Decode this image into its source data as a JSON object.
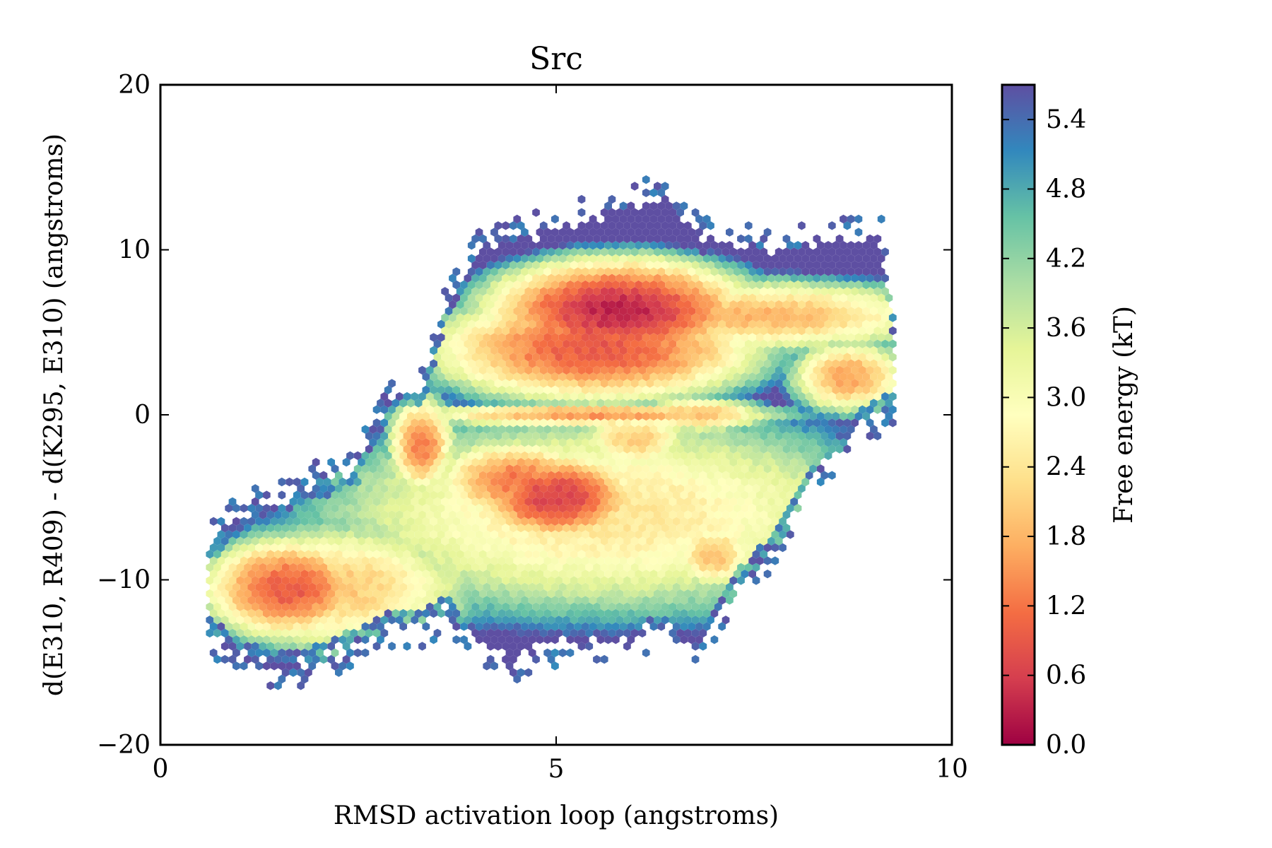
{
  "chart_data": {
    "type": "heatmap",
    "subtype": "hexbin",
    "title": "Src",
    "xlabel": "RMSD activation loop (angstroms)",
    "ylabel": "d(E310, R409) - d(K295, E310) (angstroms)",
    "xlim": [
      0,
      10
    ],
    "ylim": [
      -20,
      20
    ],
    "x_ticks": [
      0,
      5,
      10
    ],
    "x_tick_labels": [
      "0",
      "5",
      "10"
    ],
    "y_ticks": [
      -20,
      -10,
      0,
      10,
      20
    ],
    "y_tick_labels": [
      "−20",
      "−10",
      "0",
      "10",
      "20"
    ],
    "grid": false,
    "colorbar": {
      "label": "Free energy (kT)",
      "range": [
        0.0,
        5.7
      ],
      "ticks": [
        0.0,
        0.6,
        1.2,
        1.8,
        2.4,
        3.0,
        3.6,
        4.2,
        4.8,
        5.4
      ],
      "tick_labels": [
        "0.0",
        "0.6",
        "1.2",
        "1.8",
        "2.4",
        "3.0",
        "3.6",
        "4.2",
        "4.8",
        "5.4"
      ],
      "colormap": "Spectral",
      "colormap_stops": [
        "#9e0142",
        "#d53e4f",
        "#f46d43",
        "#fdae61",
        "#fee08b",
        "#ffffbf",
        "#e6f598",
        "#abdda4",
        "#66c2a5",
        "#3288bd",
        "#5e4fa2"
      ]
    },
    "basins": [
      {
        "x": 5.8,
        "y": 6.3,
        "min_energy": 0.3
      },
      {
        "x": 5.5,
        "y": 4.0,
        "min_energy": 0.9
      },
      {
        "x": 5.0,
        "y": -5.0,
        "min_energy": 0.6
      },
      {
        "x": 4.5,
        "y": -4.0,
        "min_energy": 1.2
      },
      {
        "x": 1.6,
        "y": -10.5,
        "min_energy": 0.9
      },
      {
        "x": 3.3,
        "y": -1.8,
        "min_energy": 1.3
      },
      {
        "x": 8.7,
        "y": 2.3,
        "min_energy": 1.6
      },
      {
        "x": 7.0,
        "y": -8.5,
        "min_energy": 1.9
      },
      {
        "x": 5.5,
        "y": 0.0,
        "min_energy": 1.5
      }
    ]
  }
}
